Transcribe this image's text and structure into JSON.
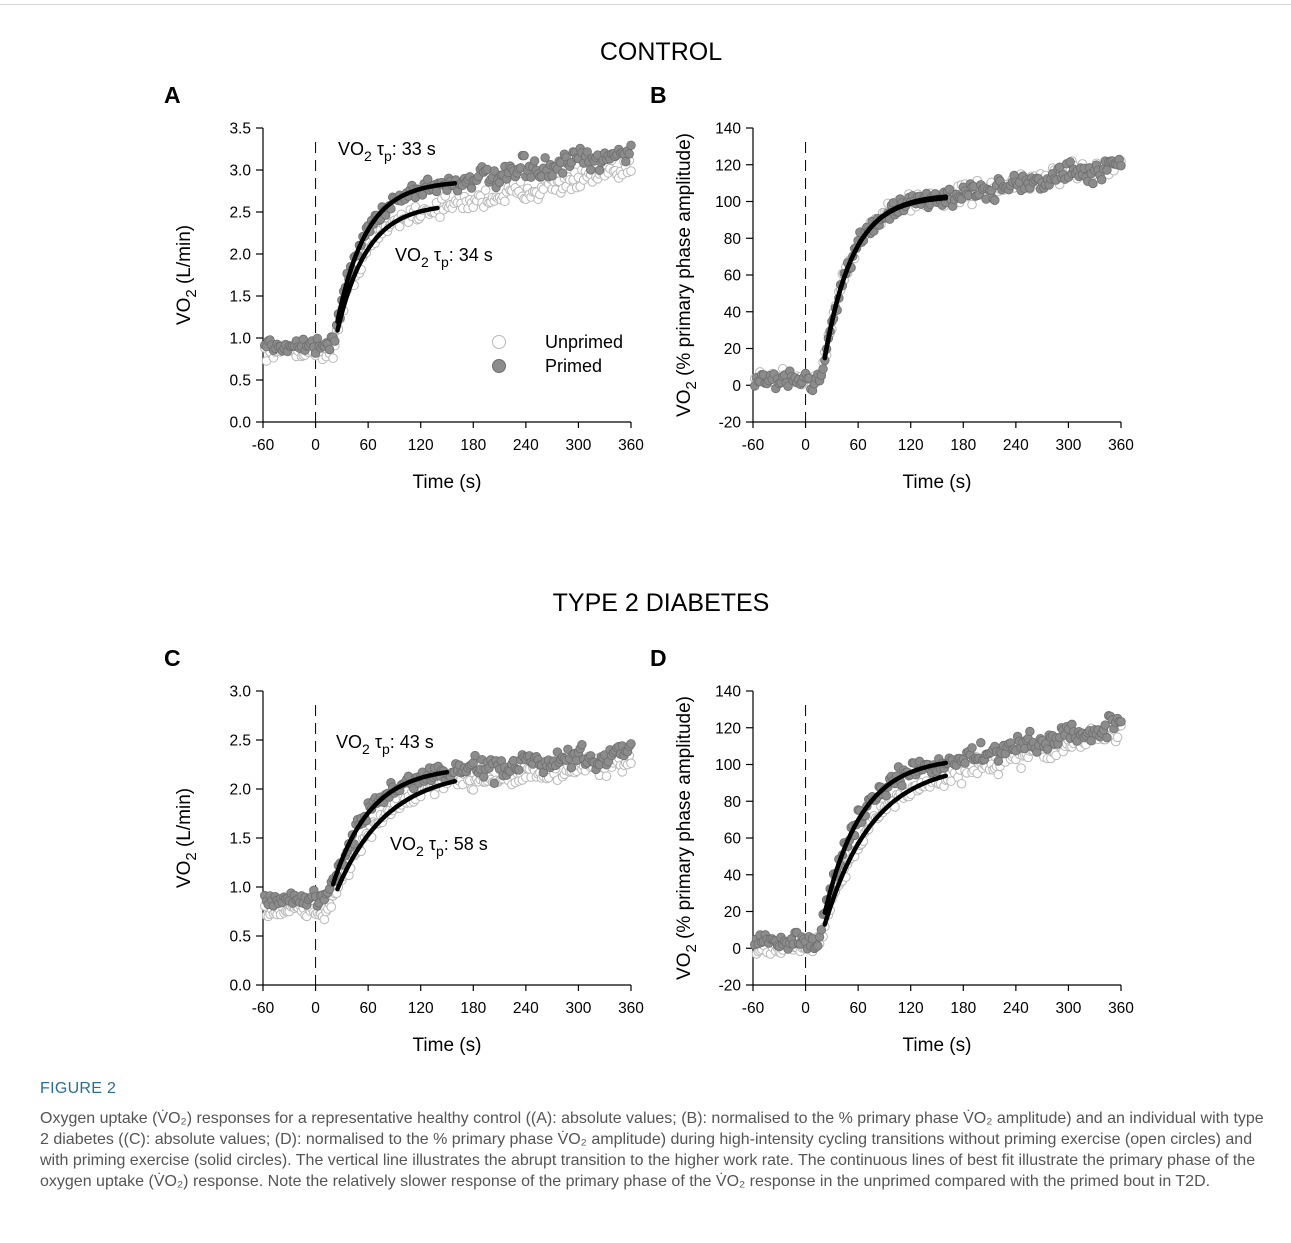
{
  "chart_data": {
    "type": "scatter",
    "sections": [
      {
        "id": "control",
        "title": "CONTROL"
      },
      {
        "id": "t2d",
        "title": "TYPE 2 DIABETES"
      }
    ],
    "legend": {
      "placement": "center-right",
      "entries": [
        {
          "name": "Unprimed",
          "marker": "open circle"
        },
        {
          "name": "Primed",
          "marker": "solid circle"
        }
      ]
    },
    "panels": [
      {
        "label": "A",
        "section": "control",
        "xlabel": "Time (s)",
        "ylabel": "VO2 (L/min)",
        "xlim": [
          -60,
          360
        ],
        "ylim": [
          0,
          3.5
        ],
        "xticks": [
          -60,
          0,
          60,
          120,
          180,
          240,
          300,
          360
        ],
        "yticks": [
          "0.0",
          "0.5",
          "1.0",
          "1.5",
          "2.0",
          "2.5",
          "3.0",
          "3.5"
        ],
        "transition_x": 0,
        "series": [
          {
            "name": "Unprimed",
            "baseline": 0.85,
            "amplitude": 1.75,
            "tau": 34,
            "delay": 20,
            "end_value": 3.0,
            "fit_start": 25,
            "fit_end": 140
          },
          {
            "name": "Primed",
            "baseline": 0.92,
            "amplitude": 1.95,
            "tau": 33,
            "delay": 20,
            "end_value": 3.2,
            "fit_start": 25,
            "fit_end": 160
          }
        ],
        "annotations": [
          {
            "prefix": "VO",
            "sub": "2",
            "tau": "τ",
            "tsub": "p",
            "value": ": 33 s",
            "series": "Primed"
          },
          {
            "prefix": "VO",
            "sub": "2",
            "tau": "τ",
            "tsub": "p",
            "value": ": 34 s",
            "series": "Unprimed"
          }
        ]
      },
      {
        "label": "B",
        "section": "control",
        "xlabel": "Time (s)",
        "ylabel": "VO2 (% primary phase amplitude)",
        "xlim": [
          -60,
          360
        ],
        "ylim": [
          -20,
          140
        ],
        "xticks": [
          -60,
          0,
          60,
          120,
          180,
          240,
          300,
          360
        ],
        "yticks": [
          "-20",
          "0",
          "20",
          "40",
          "60",
          "80",
          "100",
          "120",
          "140"
        ],
        "transition_x": 0,
        "series": [
          {
            "name": "Unprimed",
            "baseline": 4,
            "amplitude": 100,
            "tau": 33,
            "delay": 18,
            "end_value": 120,
            "fit_start": 22,
            "fit_end": 160
          },
          {
            "name": "Primed",
            "baseline": 3,
            "amplitude": 100,
            "tau": 32,
            "delay": 18,
            "end_value": 120,
            "fit_start": 22,
            "fit_end": 160
          }
        ],
        "annotations": []
      },
      {
        "label": "C",
        "section": "t2d",
        "xlabel": "Time (s)",
        "ylabel": "VO2 (L/min)",
        "xlim": [
          -60,
          360
        ],
        "ylim": [
          0,
          3.0
        ],
        "xticks": [
          -60,
          0,
          60,
          120,
          180,
          240,
          300,
          360
        ],
        "yticks": [
          "0.0",
          "0.5",
          "1.0",
          "1.5",
          "2.0",
          "2.5",
          "3.0"
        ],
        "transition_x": 0,
        "series": [
          {
            "name": "Unprimed",
            "baseline": 0.75,
            "amplitude": 1.45,
            "tau": 58,
            "delay": 15,
            "end_value": 2.25,
            "fit_start": 25,
            "fit_end": 160
          },
          {
            "name": "Primed",
            "baseline": 0.88,
            "amplitude": 1.35,
            "tau": 43,
            "delay": 15,
            "end_value": 2.35,
            "fit_start": 20,
            "fit_end": 150
          }
        ],
        "annotations": [
          {
            "prefix": "VO",
            "sub": "2",
            "tau": "τ",
            "tsub": "p",
            "value": ": 43 s",
            "series": "Primed"
          },
          {
            "prefix": "VO",
            "sub": "2",
            "tau": "τ",
            "tsub": "p",
            "value": ": 58 s",
            "series": "Unprimed"
          }
        ]
      },
      {
        "label": "D",
        "section": "t2d",
        "xlabel": "Time (s)",
        "ylabel": "VO2 (% primary phase amplitude)",
        "xlim": [
          -60,
          360
        ],
        "ylim": [
          -20,
          140
        ],
        "xticks": [
          -60,
          0,
          60,
          120,
          180,
          240,
          300,
          360
        ],
        "yticks": [
          "-20",
          "0",
          "20",
          "40",
          "60",
          "80",
          "100",
          "120",
          "140"
        ],
        "transition_x": 0,
        "series": [
          {
            "name": "Unprimed",
            "baseline": 1,
            "amplitude": 100,
            "tau": 55,
            "delay": 15,
            "end_value": 118,
            "fit_start": 22,
            "fit_end": 160
          },
          {
            "name": "Primed",
            "baseline": 4,
            "amplitude": 100,
            "tau": 42,
            "delay": 15,
            "end_value": 122,
            "fit_start": 22,
            "fit_end": 160
          }
        ],
        "annotations": []
      }
    ]
  },
  "caption": {
    "label": "FIGURE 2",
    "text": "Oxygen uptake (V̇O₂) responses for a representative healthy control ((A): absolute values; (B): normalised to the % primary phase V̇O₂ amplitude) and an individual with type 2 diabetes ((C): absolute values; (D): normalised to the % primary phase V̇O₂ amplitude) during high-intensity cycling transitions without priming exercise (open circles) and with priming exercise (solid circles). The vertical line illustrates the abrupt transition to the higher work rate. The continuous lines of best fit illustrate the primary phase of the oxygen uptake (V̇O₂) response. Note the relatively slower response of the primary phase of the V̇O₂ response in the unprimed compared with the primed bout in T2D."
  },
  "colors": {
    "primed_fill": "#8c8c8c",
    "primed_stroke": "#6e6e6e",
    "unprimed_stroke": "#b8b8b8",
    "fit": "#000000",
    "caption_label": "#2a6f8f",
    "caption_text": "#555555"
  }
}
